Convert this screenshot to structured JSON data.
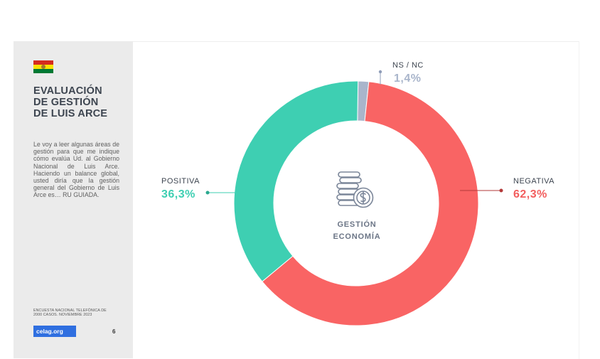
{
  "sidebar": {
    "title": "EVALUACIÓN\nDE GESTIÓN\nDE LUIS ARCE",
    "description": "Le voy a leer algunas áreas de gestión para que me indique cómo evalúa Ud. al Gobierno Nacional de Luis Arce. Haciendo un balance global, usted diría que la gestión general del Gobierno de Luis Arce es… RU GUIADA.",
    "source": "ENCUESTA NACIONAL TELEFÓNICA DE\n2000 CASOS. NOVIEMBRE 2023",
    "logo": "celag.org",
    "page_number": "6",
    "flag_colors": [
      "#d52b1e",
      "#f9e300",
      "#007934"
    ]
  },
  "center": {
    "icon": "coins-dollar-icon",
    "line1": "GESTIÓN",
    "line2": "ECONOMÍA"
  },
  "chart_data": {
    "type": "pie",
    "subtype": "donut",
    "categories": [
      "NEGATIVA",
      "POSITIVA",
      "NS / NC"
    ],
    "values": [
      62.3,
      36.3,
      1.4
    ],
    "labels": [
      "62,3%",
      "36,3%",
      "1,4%"
    ],
    "colors": [
      "#f96464",
      "#3ecfb2",
      "#a9b5cb"
    ],
    "center_label": [
      "GESTIÓN",
      "ECONOMÍA"
    ]
  }
}
